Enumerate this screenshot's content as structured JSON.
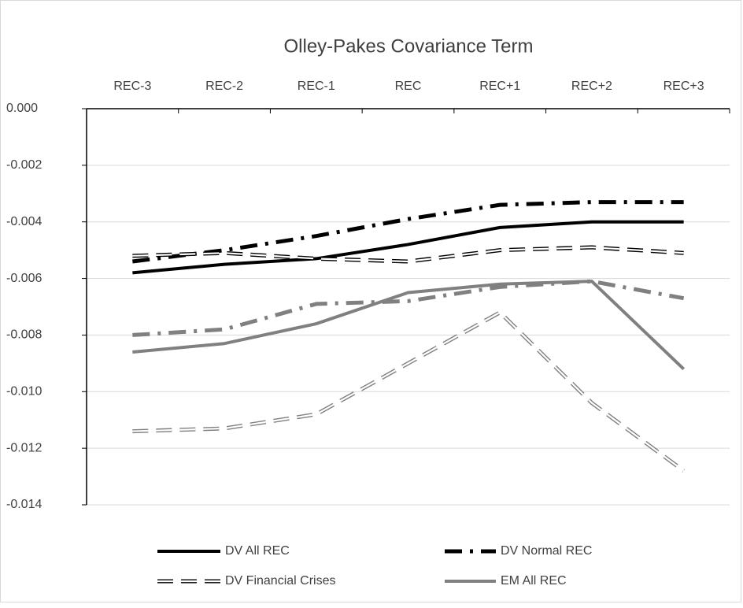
{
  "chart_data": {
    "type": "line",
    "title": "Olley-Pakes Covariance Term",
    "categories": [
      "REC-3",
      "REC-2",
      "REC-1",
      "REC",
      "REC+1",
      "REC+2",
      "REC+3"
    ],
    "ylim": [
      -0.014,
      0
    ],
    "yticks": [
      {
        "value": 0,
        "label": "0.000"
      },
      -0.002,
      -0.004,
      -0.006,
      -0.008,
      {
        "value": -0.01,
        "label": "-0.010"
      },
      -0.012,
      -0.014
    ],
    "grid": true,
    "legend": "bottom",
    "series": [
      {
        "name": "DV All REC",
        "color": "#000000",
        "style": "solid",
        "values": [
          -0.0058,
          -0.0055,
          -0.0053,
          -0.0048,
          -0.0042,
          -0.004,
          -0.004
        ]
      },
      {
        "name": "DV Normal REC",
        "color": "#000000",
        "style": "dashdot",
        "values": [
          -0.0054,
          -0.005,
          -0.0045,
          -0.0039,
          -0.0034,
          -0.0033,
          -0.0033
        ]
      },
      {
        "name": "DV Financial Crises",
        "color": "#000000",
        "style": "double-dash",
        "values": [
          -0.0052,
          -0.0051,
          -0.0053,
          -0.0054,
          -0.005,
          -0.0049,
          -0.0051
        ]
      },
      {
        "name": "EM All REC",
        "color": "#808080",
        "style": "solid",
        "values": [
          -0.0086,
          -0.0083,
          -0.0076,
          -0.0065,
          -0.0062,
          -0.0061,
          -0.0092
        ]
      },
      {
        "color": "#808080",
        "style": "dashdot",
        "values": [
          -0.008,
          -0.0078,
          -0.0069,
          -0.0068,
          -0.0063,
          -0.0061,
          -0.0067
        ]
      },
      {
        "color": "#808080",
        "style": "double-dash",
        "values": [
          -0.0114,
          -0.0113,
          -0.0108,
          -0.009,
          -0.0072,
          -0.0104,
          -0.0128
        ]
      }
    ]
  }
}
